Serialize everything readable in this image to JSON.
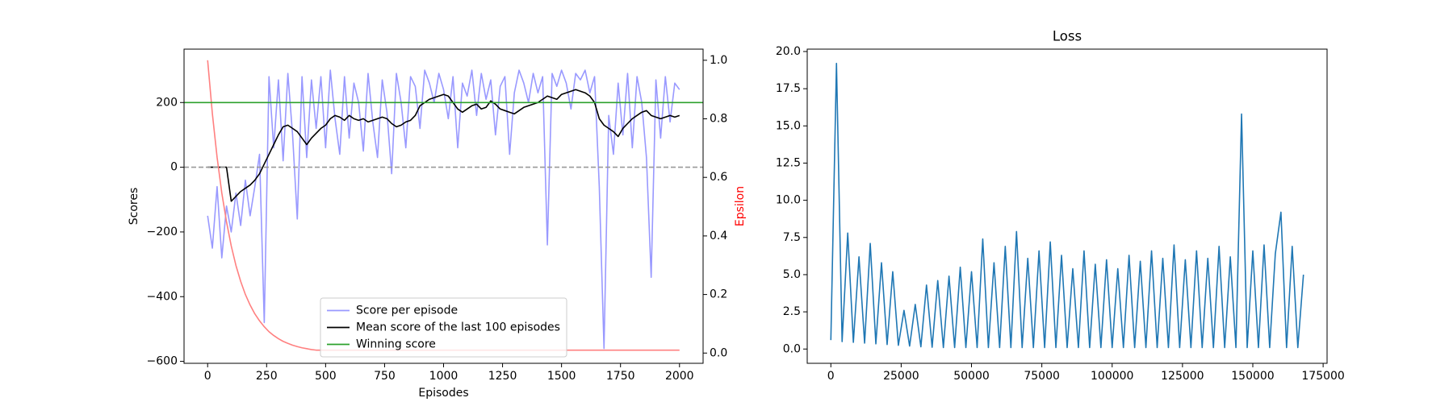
{
  "chart_data": [
    {
      "type": "line",
      "xlabel": "Episodes",
      "ylabel": "Scores",
      "y2label": "Epsilon",
      "y2label_color": "red",
      "xlim": [
        -100,
        2100
      ],
      "xticks": [
        0,
        250,
        500,
        750,
        1000,
        1250,
        1500,
        1750,
        2000
      ],
      "ylim": [
        -606,
        365
      ],
      "yticks": [
        {
          "value": -600,
          "label": "−600"
        },
        {
          "value": -400,
          "label": "−400"
        },
        {
          "value": -200,
          "label": "−200"
        },
        0,
        200
      ],
      "y2lim": [
        -0.035,
        1.038
      ],
      "y2ticks": [
        {
          "value": 0,
          "label": "0.0"
        },
        0.2,
        0.4,
        0.6,
        0.8,
        {
          "value": 1,
          "label": "1.0"
        }
      ],
      "legend": "lower center",
      "series": [
        {
          "name": "Score per episode",
          "color": "#9999ff",
          "x": [
            0,
            20,
            40,
            60,
            80,
            100,
            120,
            140,
            160,
            180,
            200,
            220,
            240,
            260,
            280,
            300,
            320,
            340,
            360,
            380,
            400,
            420,
            440,
            460,
            480,
            500,
            520,
            540,
            560,
            580,
            600,
            620,
            640,
            660,
            680,
            700,
            720,
            740,
            760,
            780,
            800,
            820,
            840,
            860,
            880,
            900,
            920,
            940,
            960,
            980,
            1000,
            1020,
            1040,
            1060,
            1080,
            1100,
            1120,
            1140,
            1160,
            1180,
            1200,
            1220,
            1240,
            1260,
            1280,
            1300,
            1320,
            1340,
            1360,
            1380,
            1400,
            1420,
            1440,
            1460,
            1480,
            1500,
            1520,
            1540,
            1560,
            1580,
            1600,
            1620,
            1640,
            1660,
            1680,
            1700,
            1720,
            1740,
            1760,
            1780,
            1800,
            1820,
            1840,
            1860,
            1880,
            1900,
            1920,
            1940,
            1960,
            1980,
            2000
          ],
          "values": [
            -150,
            -250,
            -60,
            -280,
            -120,
            -200,
            -80,
            -180,
            -40,
            -150,
            -60,
            40,
            -480,
            280,
            60,
            270,
            20,
            290,
            100,
            -160,
            280,
            30,
            270,
            120,
            280,
            60,
            300,
            150,
            40,
            280,
            90,
            260,
            200,
            50,
            290,
            140,
            30,
            270,
            170,
            -20,
            290,
            200,
            60,
            280,
            250,
            120,
            300,
            260,
            200,
            290,
            240,
            150,
            280,
            60,
            260,
            220,
            300,
            160,
            290,
            210,
            270,
            100,
            250,
            280,
            40,
            230,
            300,
            260,
            200,
            290,
            230,
            280,
            -240,
            290,
            250,
            300,
            260,
            180,
            290,
            270,
            300,
            230,
            280,
            -60,
            -560,
            160,
            40,
            260,
            100,
            290,
            60,
            280,
            200,
            30,
            -340,
            270,
            90,
            280,
            140,
            260,
            240
          ]
        },
        {
          "name": "Mean score of the last 100 episodes",
          "color": "#000000",
          "x": [
            0,
            20,
            40,
            60,
            80,
            100,
            120,
            140,
            160,
            180,
            200,
            220,
            240,
            260,
            280,
            300,
            320,
            340,
            360,
            380,
            400,
            420,
            440,
            460,
            480,
            500,
            520,
            540,
            560,
            580,
            600,
            620,
            640,
            660,
            680,
            700,
            720,
            740,
            760,
            780,
            800,
            820,
            840,
            860,
            880,
            900,
            920,
            940,
            960,
            980,
            1000,
            1020,
            1040,
            1060,
            1080,
            1100,
            1120,
            1140,
            1160,
            1180,
            1200,
            1220,
            1240,
            1260,
            1280,
            1300,
            1320,
            1340,
            1360,
            1380,
            1400,
            1420,
            1440,
            1460,
            1480,
            1500,
            1520,
            1540,
            1560,
            1580,
            1600,
            1620,
            1640,
            1660,
            1680,
            1700,
            1720,
            1740,
            1760,
            1780,
            1800,
            1820,
            1840,
            1860,
            1880,
            1900,
            1920,
            1940,
            1960,
            1980,
            2000
          ],
          "values": [
            0,
            0,
            0,
            0,
            0,
            -105,
            -90,
            -75,
            -65,
            -55,
            -40,
            -20,
            10,
            40,
            70,
            100,
            125,
            130,
            120,
            110,
            90,
            70,
            90,
            105,
            120,
            130,
            150,
            160,
            155,
            145,
            160,
            150,
            145,
            150,
            140,
            145,
            150,
            155,
            150,
            135,
            125,
            130,
            140,
            145,
            160,
            190,
            200,
            210,
            215,
            220,
            225,
            220,
            200,
            180,
            170,
            180,
            190,
            195,
            180,
            185,
            205,
            195,
            180,
            175,
            170,
            165,
            175,
            185,
            190,
            195,
            200,
            210,
            220,
            215,
            210,
            225,
            230,
            235,
            240,
            235,
            230,
            220,
            200,
            150,
            130,
            120,
            110,
            95,
            120,
            135,
            150,
            160,
            170,
            175,
            160,
            155,
            150,
            155,
            160,
            155,
            160
          ]
        },
        {
          "color": "#ff8080",
          "axis": "y2",
          "x": [
            0,
            20,
            40,
            60,
            80,
            100,
            120,
            140,
            160,
            180,
            200,
            220,
            240,
            260,
            280,
            300,
            320,
            340,
            360,
            380,
            400,
            420,
            440,
            460,
            2000
          ],
          "values": [
            1.0,
            0.818,
            0.669,
            0.547,
            0.448,
            0.366,
            0.299,
            0.245,
            0.2,
            0.164,
            0.134,
            0.11,
            0.09,
            0.073,
            0.06,
            0.049,
            0.04,
            0.033,
            0.027,
            0.022,
            0.018,
            0.015,
            0.012,
            0.01,
            0.01
          ]
        }
      ],
      "hlines": [
        {
          "name": "Winning score",
          "value": 200,
          "color": "#2ca02c"
        },
        {
          "value": 0,
          "color": "#999999",
          "dash": true
        }
      ]
    },
    {
      "type": "line",
      "title": "Loss",
      "xlim": [
        -8400,
        176400
      ],
      "xticks": [
        0,
        25000,
        50000,
        75000,
        100000,
        125000,
        150000,
        175000
      ],
      "ylim": [
        -0.96,
        20.16
      ],
      "yticks": [
        {
          "value": 0,
          "label": "0.0"
        },
        2.5,
        {
          "value": 5,
          "label": "5.0"
        },
        7.5,
        {
          "value": 10,
          "label": "10.0"
        },
        12.5,
        {
          "value": 15,
          "label": "15.0"
        },
        17.5,
        {
          "value": 20,
          "label": "20.0"
        }
      ],
      "series": [
        {
          "color": "#1f77b4",
          "x": [
            0,
            2000,
            4000,
            6000,
            8000,
            10000,
            12000,
            14000,
            16000,
            18000,
            20000,
            22000,
            24000,
            26000,
            28000,
            30000,
            32000,
            34000,
            36000,
            38000,
            40000,
            42000,
            44000,
            46000,
            48000,
            50000,
            52000,
            54000,
            56000,
            58000,
            60000,
            62000,
            64000,
            66000,
            68000,
            70000,
            72000,
            74000,
            76000,
            78000,
            80000,
            82000,
            84000,
            86000,
            88000,
            90000,
            92000,
            94000,
            96000,
            98000,
            100000,
            102000,
            104000,
            106000,
            108000,
            110000,
            112000,
            114000,
            116000,
            118000,
            120000,
            122000,
            124000,
            126000,
            128000,
            130000,
            132000,
            134000,
            136000,
            138000,
            140000,
            142000,
            144000,
            146000,
            148000,
            150000,
            152000,
            154000,
            156000,
            158000,
            160000,
            162000,
            164000,
            166000,
            168000
          ],
          "values": [
            0.6,
            19.2,
            0.5,
            7.8,
            0.45,
            6.2,
            0.4,
            7.1,
            0.35,
            5.8,
            0.3,
            5.2,
            0.25,
            2.6,
            0.2,
            3.0,
            0.15,
            4.3,
            0.12,
            4.6,
            0.1,
            4.9,
            0.1,
            5.5,
            0.1,
            5.2,
            0.1,
            7.4,
            0.1,
            5.8,
            0.1,
            6.9,
            0.1,
            7.9,
            0.1,
            6.1,
            0.1,
            6.6,
            0.1,
            7.2,
            0.1,
            6.3,
            0.1,
            5.4,
            0.1,
            6.6,
            0.1,
            5.7,
            0.1,
            6.0,
            0.1,
            5.4,
            0.1,
            6.3,
            0.1,
            5.9,
            0.1,
            6.6,
            0.1,
            6.1,
            0.1,
            7.0,
            0.1,
            6.0,
            0.1,
            6.6,
            0.1,
            6.1,
            0.1,
            6.9,
            0.1,
            6.2,
            0.1,
            15.8,
            0.1,
            6.6,
            0.1,
            7.0,
            0.1,
            6.4,
            9.2,
            0.1,
            6.9,
            0.1,
            5.0
          ]
        }
      ]
    }
  ]
}
